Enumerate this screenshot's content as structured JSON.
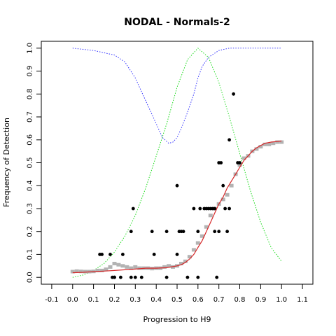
{
  "chart_data": {
    "type": "scatter",
    "title": "NODAL - Normals-2",
    "xlabel": "Progression to H9",
    "ylabel": "Frequency of Detection",
    "xlim": [
      -0.15,
      1.15
    ],
    "ylim": [
      -0.03,
      1.03
    ],
    "x_ticks": [
      "-0.1",
      "0.0",
      "0.1",
      "0.2",
      "0.3",
      "0.4",
      "0.5",
      "0.6",
      "0.7",
      "0.8",
      "0.9",
      "1.0",
      "1.1"
    ],
    "y_ticks": [
      "0.0",
      "0.1",
      "0.2",
      "0.3",
      "0.4",
      "0.5",
      "0.6",
      "0.7",
      "0.8",
      "0.9",
      "1.0"
    ],
    "colors": {
      "points": "#000000",
      "smoothed_points": "#b3b3b3",
      "fit_line": "#d62728",
      "green_curve": "#22dd22",
      "blue_curve": "#3333ff"
    },
    "series": [
      {
        "kind": "points",
        "x": [
          0.13,
          0.14,
          0.18,
          0.19,
          0.2,
          0.2,
          0.23,
          0.24,
          0.28,
          0.28,
          0.29,
          0.3,
          0.33,
          0.38,
          0.39,
          0.45,
          0.45,
          0.5,
          0.5,
          0.51,
          0.52,
          0.53,
          0.55,
          0.58,
          0.6,
          0.6,
          0.61,
          0.63,
          0.64,
          0.65,
          0.66,
          0.67,
          0.68,
          0.68,
          0.69,
          0.7,
          0.7,
          0.71,
          0.72,
          0.73,
          0.74,
          0.75,
          0.75,
          0.77,
          0.79,
          0.8
        ],
        "y": [
          0.1,
          0.1,
          0.1,
          0.0,
          0.0,
          0.0,
          0.0,
          0.1,
          0.0,
          0.2,
          0.3,
          0.0,
          0.0,
          0.2,
          0.1,
          0.2,
          0.0,
          0.1,
          0.4,
          0.2,
          0.2,
          0.2,
          0.0,
          0.3,
          0.0,
          0.2,
          0.3,
          0.3,
          0.3,
          0.3,
          0.3,
          0.3,
          0.2,
          0.3,
          0.0,
          0.5,
          0.2,
          0.5,
          0.4,
          0.3,
          0.2,
          0.6,
          0.3,
          0.8,
          0.5,
          0.5
        ]
      },
      {
        "kind": "smoothed_points",
        "x": [
          0.0,
          0.02,
          0.04,
          0.06,
          0.08,
          0.1,
          0.12,
          0.14,
          0.16,
          0.18,
          0.2,
          0.22,
          0.24,
          0.26,
          0.28,
          0.3,
          0.32,
          0.34,
          0.36,
          0.38,
          0.4,
          0.42,
          0.44,
          0.46,
          0.48,
          0.5,
          0.52,
          0.54,
          0.56,
          0.58,
          0.6,
          0.62,
          0.64,
          0.66,
          0.68,
          0.7,
          0.72,
          0.74,
          0.76,
          0.78,
          0.8,
          0.82,
          0.84,
          0.86,
          0.88,
          0.9,
          0.92,
          0.94,
          0.96,
          0.98,
          1.0
        ],
        "y": [
          0.025,
          0.027,
          0.026,
          0.025,
          0.025,
          0.026,
          0.03,
          0.03,
          0.035,
          0.045,
          0.06,
          0.055,
          0.05,
          0.045,
          0.04,
          0.045,
          0.04,
          0.04,
          0.04,
          0.038,
          0.04,
          0.04,
          0.045,
          0.05,
          0.045,
          0.05,
          0.06,
          0.07,
          0.09,
          0.12,
          0.15,
          0.18,
          0.22,
          0.27,
          0.3,
          0.32,
          0.34,
          0.36,
          0.4,
          0.45,
          0.49,
          0.52,
          0.53,
          0.55,
          0.56,
          0.57,
          0.58,
          0.58,
          0.585,
          0.59,
          0.59
        ]
      },
      {
        "kind": "fit_line",
        "x": [
          0.0,
          0.05,
          0.1,
          0.15,
          0.2,
          0.25,
          0.3,
          0.35,
          0.4,
          0.45,
          0.5,
          0.52,
          0.54,
          0.56,
          0.58,
          0.6,
          0.62,
          0.64,
          0.66,
          0.68,
          0.7,
          0.72,
          0.74,
          0.76,
          0.78,
          0.8,
          0.82,
          0.84,
          0.86,
          0.88,
          0.9,
          0.92,
          0.95,
          1.0
        ],
        "y": [
          0.02,
          0.022,
          0.025,
          0.027,
          0.03,
          0.033,
          0.036,
          0.04,
          0.04,
          0.042,
          0.05,
          0.055,
          0.065,
          0.08,
          0.1,
          0.13,
          0.16,
          0.2,
          0.24,
          0.28,
          0.32,
          0.35,
          0.39,
          0.42,
          0.45,
          0.48,
          0.51,
          0.53,
          0.55,
          0.565,
          0.575,
          0.585,
          0.59,
          0.595
        ]
      },
      {
        "kind": "green_curve",
        "x": [
          0.0,
          0.05,
          0.1,
          0.15,
          0.2,
          0.25,
          0.3,
          0.35,
          0.4,
          0.45,
          0.5,
          0.55,
          0.6,
          0.65,
          0.7,
          0.75,
          0.8,
          0.85,
          0.9,
          0.95,
          1.0
        ],
        "y": [
          0.0,
          0.01,
          0.03,
          0.06,
          0.11,
          0.18,
          0.27,
          0.39,
          0.53,
          0.67,
          0.83,
          0.95,
          1.0,
          0.96,
          0.85,
          0.7,
          0.54,
          0.38,
          0.24,
          0.13,
          0.07
        ]
      },
      {
        "kind": "blue_curve",
        "x": [
          0.0,
          0.1,
          0.2,
          0.25,
          0.3,
          0.35,
          0.4,
          0.43,
          0.46,
          0.48,
          0.5,
          0.52,
          0.55,
          0.58,
          0.6,
          0.62,
          0.65,
          0.7,
          0.75,
          0.8,
          0.9,
          1.0
        ],
        "y": [
          1.0,
          0.99,
          0.97,
          0.94,
          0.87,
          0.77,
          0.67,
          0.61,
          0.585,
          0.59,
          0.61,
          0.65,
          0.72,
          0.8,
          0.87,
          0.92,
          0.96,
          0.99,
          1.0,
          1.0,
          1.0,
          1.0
        ]
      }
    ]
  }
}
